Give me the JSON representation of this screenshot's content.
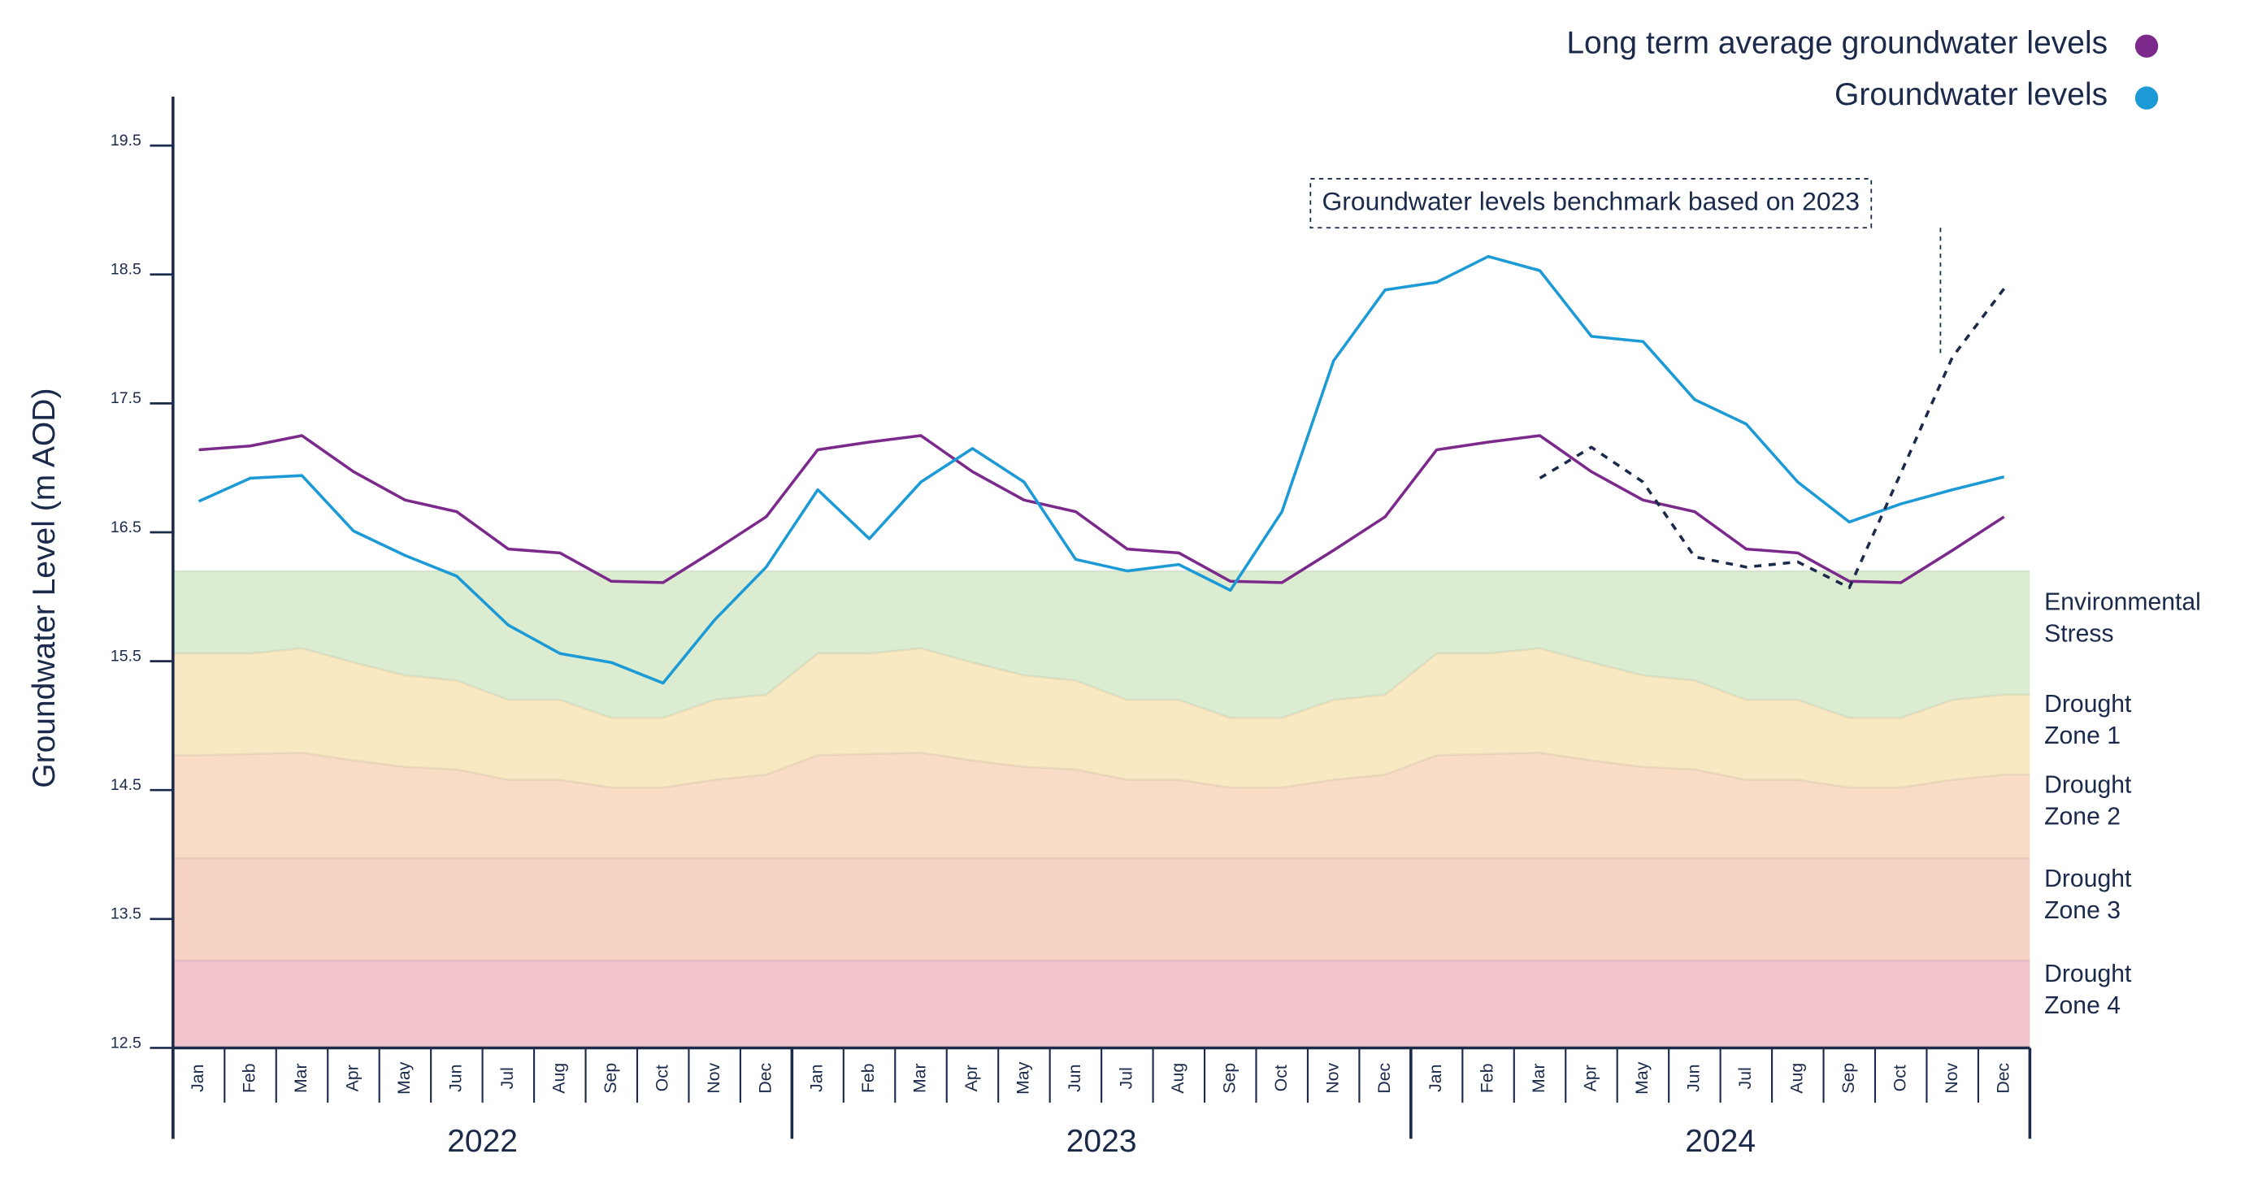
{
  "chart_data": {
    "type": "line",
    "y_label": "Groundwater Level (m AOD)",
    "categories": [
      "Jan",
      "Feb",
      "Mar",
      "Apr",
      "May",
      "Jun",
      "Jul",
      "Aug",
      "Sep",
      "Oct",
      "Nov",
      "Dec",
      "Jan",
      "Feb",
      "Mar",
      "Apr",
      "May",
      "Jun",
      "Jul",
      "Aug",
      "Sep",
      "Oct",
      "Nov",
      "Dec",
      "Jan",
      "Feb",
      "Mar",
      "Apr",
      "May",
      "Jun",
      "Jul",
      "Aug",
      "Sep",
      "Oct",
      "Nov",
      "Dec"
    ],
    "years": [
      "2022",
      "2023",
      "2024"
    ],
    "ylim": [
      12.5,
      19.88
    ],
    "yticks": [
      12.5,
      13.5,
      14.5,
      15.5,
      16.5,
      17.5,
      18.5,
      19.5
    ],
    "legend": "top-right",
    "series": [
      {
        "name": "Long term average groundwater levels",
        "color": "#7b2a8c",
        "values": [
          17.14,
          17.17,
          17.25,
          16.97,
          16.75,
          16.66,
          16.37,
          16.34,
          16.12,
          16.11,
          16.36,
          16.62,
          17.14,
          17.2,
          17.25,
          16.97,
          16.75,
          16.66,
          16.37,
          16.34,
          16.12,
          16.11,
          16.36,
          16.62,
          17.14,
          17.2,
          17.25,
          16.97,
          16.75,
          16.66,
          16.37,
          16.34,
          16.12,
          16.11,
          16.36,
          16.62
        ]
      },
      {
        "name": "Groundwater levels",
        "color": "#1c9ad6",
        "values": [
          16.74,
          16.92,
          16.94,
          16.51,
          16.32,
          16.16,
          15.78,
          15.56,
          15.49,
          15.33,
          15.82,
          16.23,
          16.83,
          16.45,
          16.89,
          17.15,
          16.89,
          16.29,
          16.2,
          16.25,
          16.05,
          16.66,
          17.83,
          18.38,
          18.44,
          18.64,
          18.53,
          18.02,
          17.98,
          17.53,
          17.34,
          16.89,
          16.58,
          16.72,
          16.83,
          16.93
        ]
      }
    ],
    "benchmark": {
      "label": "Groundwater levels benchmark based on 2023",
      "color": "#1b2a4a",
      "values": [
        null,
        null,
        null,
        null,
        null,
        null,
        null,
        null,
        null,
        null,
        null,
        null,
        null,
        null,
        null,
        null,
        null,
        null,
        null,
        null,
        null,
        null,
        null,
        null,
        null,
        null,
        16.92,
        17.16,
        16.89,
        16.31,
        16.23,
        16.27,
        16.07,
        16.96,
        17.86,
        18.39
      ]
    },
    "zones": [
      {
        "name": "Environmental Stress",
        "color": "#dcecd0",
        "upper": 16.2
      },
      {
        "name": "Drought Zone 1",
        "color": "#f8e9c2",
        "upper": [
          15.56,
          15.56,
          15.6,
          15.49,
          15.39,
          15.35,
          15.2,
          15.2,
          15.06,
          15.06,
          15.2,
          15.24,
          15.56,
          15.56,
          15.6,
          15.49,
          15.39,
          15.35,
          15.2,
          15.2,
          15.06,
          15.06,
          15.2,
          15.24,
          15.56,
          15.56,
          15.6,
          15.49,
          15.39,
          15.35,
          15.2,
          15.2,
          15.06,
          15.06,
          15.2,
          15.24
        ]
      },
      {
        "name": "Drought Zone 2",
        "color": "#f9dcc5",
        "upper": [
          14.77,
          14.78,
          14.79,
          14.73,
          14.68,
          14.66,
          14.58,
          14.58,
          14.52,
          14.52,
          14.58,
          14.62,
          14.77,
          14.78,
          14.79,
          14.73,
          14.68,
          14.66,
          14.58,
          14.58,
          14.52,
          14.52,
          14.58,
          14.62,
          14.77,
          14.78,
          14.79,
          14.73,
          14.68,
          14.66,
          14.58,
          14.58,
          14.52,
          14.52,
          14.58,
          14.62
        ]
      },
      {
        "name": "Drought Zone 3",
        "color": "#f7d3c6",
        "upper": 13.97
      },
      {
        "name": "Drought Zone 4",
        "color": "#f1c3cb",
        "upper": 13.18
      }
    ]
  }
}
